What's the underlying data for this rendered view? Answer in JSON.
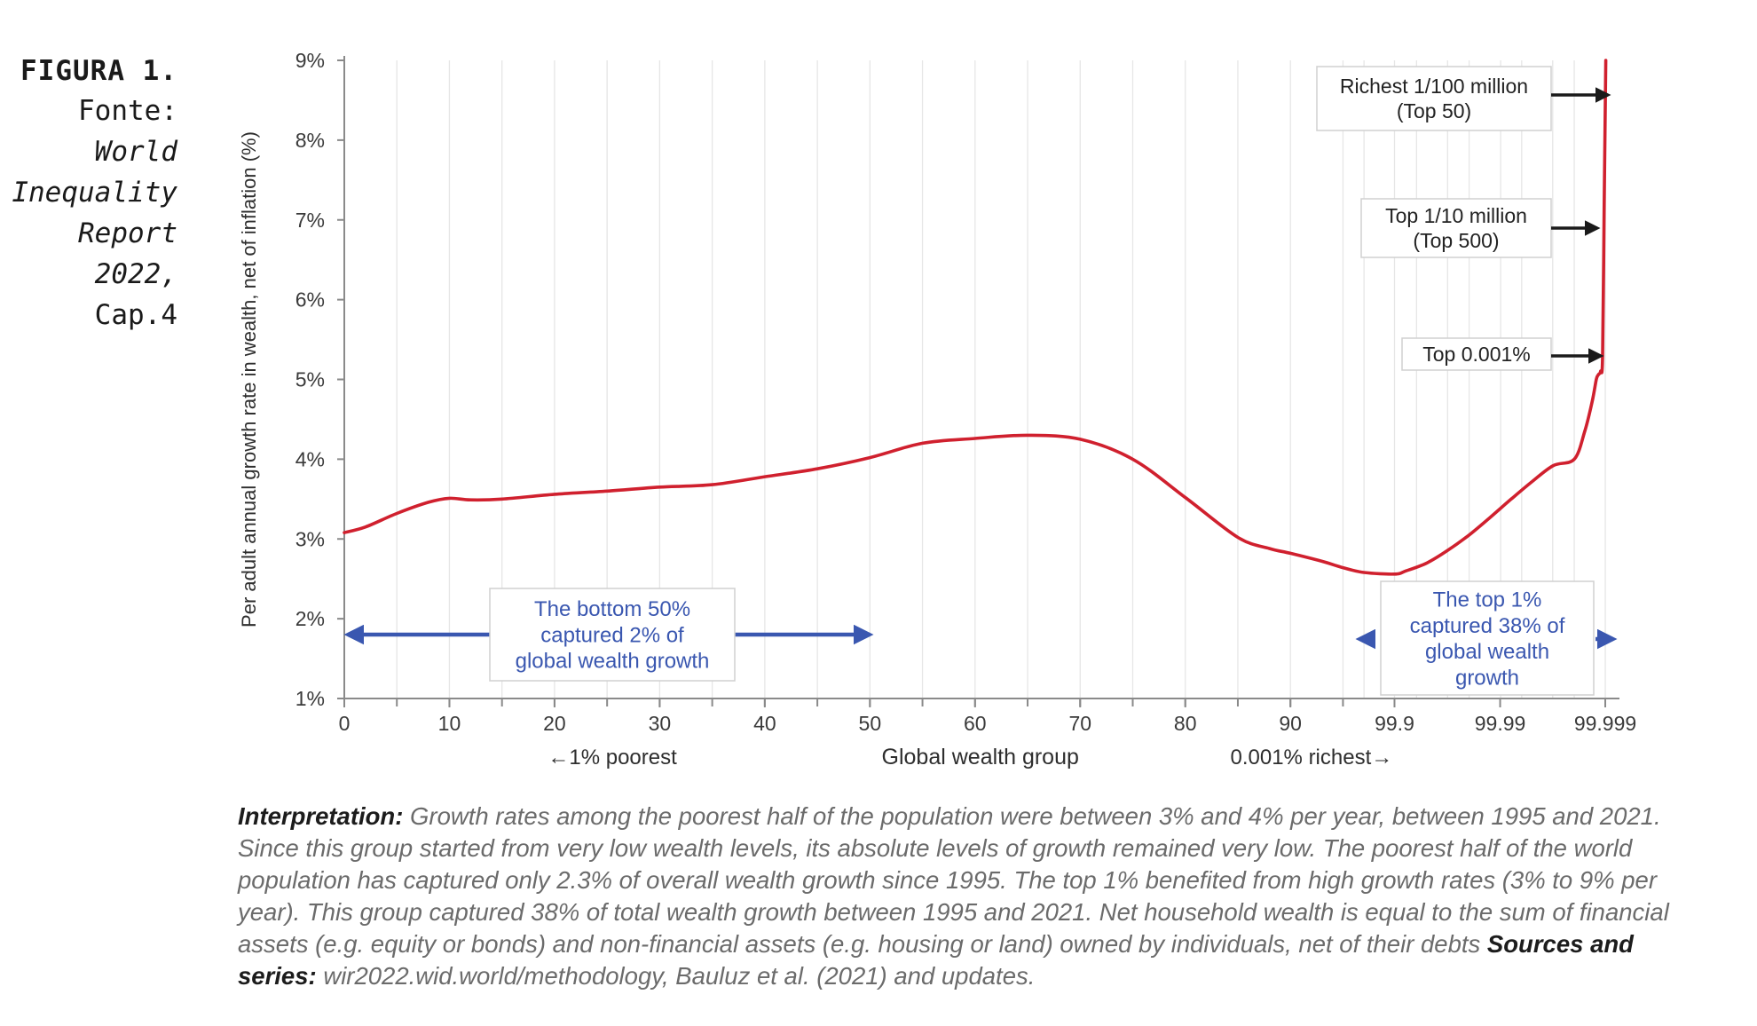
{
  "caption": {
    "figure_label": "FIGURA 1.",
    "source_prefix": "Fonte: ",
    "source_title_1": "World",
    "source_title_2": "Inequality",
    "source_title_3": "Report 2022,",
    "source_chapter": "Cap.4"
  },
  "chart_data": {
    "type": "line",
    "title": "",
    "ylabel": "Per adult annual growth rate in wealth, net of inflation (%)",
    "xlabel": "Global wealth group",
    "xlabel_left": "←1% poorest",
    "xlabel_right": "0.001% richest→",
    "ylim": [
      1,
      9
    ],
    "yticks": [
      "1%",
      "2%",
      "3%",
      "4%",
      "5%",
      "6%",
      "7%",
      "8%",
      "9%"
    ],
    "xticks": [
      "0",
      "10",
      "20",
      "30",
      "40",
      "50",
      "60",
      "70",
      "80",
      "90",
      "99.9",
      "99.99",
      "99.999"
    ],
    "grid": true,
    "line_color": "#d0202e",
    "annotation_color": "#3a57b0",
    "series": [
      {
        "x": [
          0,
          2,
          5,
          8,
          10,
          12,
          15,
          20,
          25,
          30,
          35,
          40,
          45,
          50,
          55,
          60,
          65,
          70,
          75,
          80,
          85,
          88,
          90,
          93,
          95,
          97,
          99.9,
          101,
          103,
          105,
          107,
          109,
          111,
          113,
          115,
          117,
          118,
          118.7,
          119.1,
          119.3,
          119.5,
          119.7,
          119.85,
          120
        ],
        "values": [
          3.08,
          3.15,
          3.32,
          3.46,
          3.51,
          3.49,
          3.5,
          3.56,
          3.6,
          3.65,
          3.68,
          3.78,
          3.88,
          4.02,
          4.2,
          4.26,
          4.3,
          4.25,
          4.0,
          3.52,
          3.02,
          2.88,
          2.82,
          2.72,
          2.64,
          2.58,
          2.56,
          2.6,
          2.7,
          2.86,
          3.05,
          3.27,
          3.5,
          3.72,
          3.92,
          4.0,
          4.35,
          4.72,
          5.0,
          5.06,
          5.1,
          5.3,
          7.2,
          9.0
        ]
      }
    ],
    "annotations": [
      {
        "label": "Richest 1/100 million (Top 50)",
        "line1": "Richest 1/100 million",
        "line2": "(Top 50)"
      },
      {
        "label": "Top 1/10 million (Top 500)",
        "line1": "Top 1/10 million",
        "line2": "(Top 500)"
      },
      {
        "label": "Top 0.001%",
        "line1": "Top 0.001%"
      },
      {
        "label": "The bottom 50% captured 2% of global wealth growth",
        "line1": "The bottom 50%",
        "line2": "captured 2% of",
        "line3": "global wealth growth"
      },
      {
        "label": "The top 1% captured 38% of global wealth growth",
        "line1": "The top 1%",
        "line2": "captured 38% of",
        "line3": "global wealth",
        "line4": "growth"
      }
    ]
  },
  "interpretation": {
    "label": "Interpretation:",
    "text": " Growth rates among the poorest half of the population were between 3% and 4% per year, between 1995 and 2021. Since this group started from very low wealth levels, its absolute levels of growth remained very low. The poorest half of the world population has captured only 2.3% of overall wealth growth since 1995. The top 1% benefited from high growth rates (3% to 9% per year). This group captured 38% of total wealth growth between 1995 and 2021. Net household wealth is equal to the sum of financial assets (e.g. equity or bonds) and non-financial assets (e.g. housing or land) owned by individuals, net of their debts ",
    "sources_label": "Sources and series:",
    "sources_text": " wir2022.wid.world/methodology, Bauluz et al. (2021) and updates."
  }
}
